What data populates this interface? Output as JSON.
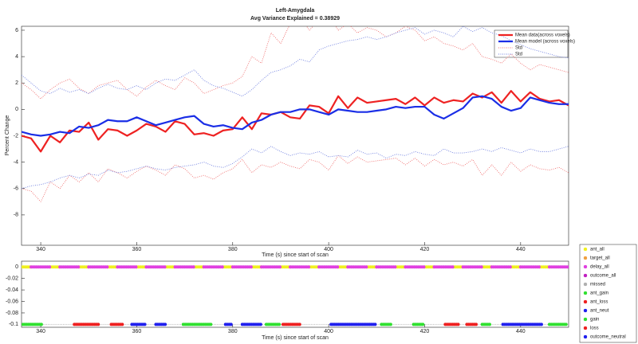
{
  "chart_data": [
    {
      "type": "line",
      "title": "Left-Amygdala",
      "subtitle": "Avg Variance Explained = 0.38929",
      "ylabel": "Percent Change",
      "xlabel": "Time (s) since start of scan",
      "xlim": [
        336,
        450
      ],
      "xticks": [
        340,
        360,
        380,
        400,
        420,
        440
      ],
      "ylim": [
        -10.3,
        6.3
      ],
      "yticks": [
        6,
        4,
        2,
        0,
        -2,
        -4,
        -6,
        -8
      ],
      "legend": "upper right",
      "x": [
        336,
        338,
        340,
        342,
        344,
        346,
        348,
        350,
        352,
        354,
        356,
        358,
        360,
        362,
        364,
        366,
        368,
        370,
        372,
        374,
        376,
        378,
        380,
        382,
        384,
        386,
        388,
        390,
        392,
        394,
        396,
        398,
        400,
        402,
        404,
        406,
        408,
        410,
        412,
        414,
        416,
        418,
        420,
        422,
        424,
        426,
        428,
        430,
        432,
        434,
        436,
        438,
        440,
        442,
        444,
        446,
        448,
        450
      ],
      "series": [
        {
          "name": "Mean data(across voxels)",
          "color": "#ee2222",
          "style": "solid",
          "values": [
            -2.0,
            -2.2,
            -3.2,
            -2.0,
            -2.5,
            -1.6,
            -1.7,
            -1.0,
            -2.3,
            -1.5,
            -1.6,
            -2.0,
            -1.6,
            -1.1,
            -1.3,
            -1.7,
            -0.9,
            -1.1,
            -1.9,
            -1.8,
            -2.0,
            -1.6,
            -1.5,
            -0.6,
            -1.5,
            -0.3,
            -0.4,
            -0.2,
            -0.6,
            -0.7,
            0.3,
            0.2,
            -0.3,
            1.0,
            0.1,
            0.9,
            0.5,
            0.6,
            0.7,
            0.8,
            0.4,
            0.9,
            0.3,
            0.9,
            0.5,
            0.7,
            0.6,
            1.2,
            0.9,
            1.3,
            0.5,
            1.4,
            0.6,
            1.3,
            0.8,
            0.6,
            0.7,
            0.3
          ]
        },
        {
          "name": "Mean model (across voxels)",
          "color": "#1a2ee6",
          "style": "solid",
          "values": [
            -1.7,
            -1.9,
            -2.0,
            -1.9,
            -1.7,
            -1.8,
            -1.3,
            -1.4,
            -1.2,
            -0.8,
            -0.9,
            -0.9,
            -0.6,
            -0.9,
            -1.2,
            -1.0,
            -0.8,
            -0.6,
            -0.5,
            -1.1,
            -1.3,
            -1.2,
            -1.4,
            -1.5,
            -1.0,
            -0.8,
            -0.4,
            -0.2,
            -0.2,
            0.0,
            0.0,
            -0.2,
            -0.4,
            0.0,
            -0.1,
            -0.2,
            -0.2,
            -0.1,
            0.0,
            0.2,
            0.1,
            0.2,
            0.2,
            -0.4,
            -0.7,
            -0.3,
            0.1,
            0.9,
            1.0,
            0.8,
            0.2,
            -0.1,
            0.1,
            0.9,
            0.7,
            0.5,
            0.4,
            0.4
          ]
        },
        {
          "name": "Std",
          "color": "#f07070",
          "style": "dotted",
          "upper": [
            2.0,
            1.5,
            0.8,
            1.5,
            2.0,
            2.3,
            1.6,
            1.2,
            1.8,
            2.0,
            2.2,
            1.5,
            1.0,
            1.7,
            2.2,
            1.8,
            1.5,
            2.4,
            2.0,
            1.2,
            1.5,
            1.8,
            2.0,
            2.5,
            4.0,
            3.5,
            5.8,
            5.0,
            6.5,
            7.0,
            6.0,
            6.8,
            7.2,
            6.0,
            6.5,
            5.8,
            6.2,
            6.0,
            5.5,
            5.8,
            6.3,
            6.0,
            5.2,
            5.5,
            5.0,
            4.8,
            4.5,
            5.0,
            4.0,
            3.8,
            3.5,
            4.2,
            3.5,
            3.0,
            3.4,
            3.2,
            3.0,
            2.8
          ],
          "lower": [
            -6.0,
            -6.2,
            -7.0,
            -5.5,
            -6.0,
            -5.0,
            -5.5,
            -4.8,
            -5.5,
            -4.5,
            -4.8,
            -5.2,
            -4.7,
            -4.3,
            -4.6,
            -5.0,
            -4.2,
            -4.5,
            -5.2,
            -5.0,
            -5.3,
            -4.8,
            -4.5,
            -3.8,
            -4.8,
            -4.2,
            -4.4,
            -4.0,
            -4.3,
            -4.5,
            -3.8,
            -4.0,
            -4.6,
            -3.5,
            -4.1,
            -3.6,
            -4.0,
            -3.9,
            -3.8,
            -3.7,
            -4.2,
            -3.7,
            -4.3,
            -3.8,
            -4.2,
            -4.0,
            -4.3,
            -3.8,
            -5.0,
            -4.2,
            -5.0,
            -4.0,
            -4.7,
            -4.2,
            -4.5,
            -4.6,
            -4.4,
            -4.8
          ]
        },
        {
          "name": "Std",
          "color": "#7080e0",
          "style": "dotted",
          "upper": [
            2.6,
            2.0,
            1.4,
            1.2,
            1.6,
            1.3,
            1.5,
            1.2,
            1.6,
            1.9,
            1.6,
            1.5,
            1.8,
            1.5,
            2.0,
            2.3,
            2.2,
            2.6,
            3.0,
            2.2,
            1.8,
            1.6,
            1.3,
            1.0,
            1.5,
            2.2,
            2.8,
            3.0,
            3.3,
            3.8,
            3.6,
            4.5,
            4.8,
            5.0,
            5.2,
            5.3,
            5.5,
            5.3,
            5.5,
            5.8,
            6.0,
            6.2,
            5.7,
            6.0,
            5.8,
            5.5,
            6.3,
            5.9,
            6.2,
            5.8,
            5.6,
            5.2,
            4.9,
            4.6,
            4.4,
            4.2,
            4.0,
            3.9
          ],
          "lower": [
            -6.0,
            -5.8,
            -5.7,
            -5.5,
            -5.2,
            -5.0,
            -5.2,
            -4.9,
            -5.0,
            -4.6,
            -4.8,
            -4.7,
            -4.5,
            -4.3,
            -4.5,
            -4.6,
            -4.4,
            -4.3,
            -4.2,
            -4.0,
            -4.3,
            -4.4,
            -4.1,
            -3.6,
            -3.0,
            -3.3,
            -2.8,
            -3.2,
            -3.5,
            -3.3,
            -3.4,
            -3.2,
            -3.6,
            -3.5,
            -3.6,
            -3.1,
            -3.4,
            -3.3,
            -3.7,
            -3.4,
            -3.5,
            -3.2,
            -3.4,
            -3.5,
            -3.0,
            -3.3,
            -3.3,
            -3.2,
            -3.0,
            -3.2,
            -2.9,
            -3.1,
            -3.3,
            -3.0,
            -3.2,
            -3.2,
            -3.0,
            -2.8
          ]
        }
      ]
    },
    {
      "type": "scatter",
      "xlabel": "Time (s) since start of scan",
      "xlim": [
        336,
        450
      ],
      "xticks": [
        340,
        360,
        380,
        400,
        420,
        440
      ],
      "ylim": [
        -0.105,
        0.01
      ],
      "yticks": [
        0,
        -0.02,
        -0.04,
        -0.06,
        -0.08,
        -0.1
      ],
      "legend": "outside right",
      "series": [
        {
          "name": "ant_all",
          "color": "#f0f020",
          "y": 0,
          "intervals": [
            [
              336,
              338
            ],
            [
              342,
              344
            ],
            [
              348,
              350
            ],
            [
              354,
              356
            ],
            [
              360,
              362
            ],
            [
              366,
              368
            ],
            [
              372,
              374
            ],
            [
              378,
              380
            ],
            [
              384,
              386
            ],
            [
              390,
              392
            ],
            [
              396,
              398
            ],
            [
              402,
              404
            ],
            [
              408,
              410
            ],
            [
              414,
              416
            ],
            [
              420,
              422
            ],
            [
              426,
              428
            ],
            [
              432,
              434
            ],
            [
              438,
              440
            ],
            [
              444,
              446
            ]
          ]
        },
        {
          "name": "target_all",
          "color": "#f0a040",
          "y": 0,
          "intervals": []
        },
        {
          "name": "delay_all",
          "color": "#e040e0",
          "y": 0,
          "intervals": [
            [
              338,
              342
            ],
            [
              344,
              348
            ],
            [
              350,
              354
            ],
            [
              356,
              360
            ],
            [
              362,
              366
            ],
            [
              368,
              372
            ],
            [
              374,
              378
            ],
            [
              380,
              384
            ],
            [
              386,
              390
            ],
            [
              392,
              396
            ],
            [
              398,
              402
            ],
            [
              404,
              408
            ],
            [
              410,
              414
            ],
            [
              416,
              420
            ],
            [
              422,
              426
            ],
            [
              428,
              432
            ],
            [
              434,
              438
            ],
            [
              440,
              444
            ],
            [
              446,
              450
            ]
          ]
        },
        {
          "name": "outcome_all",
          "color": "#c020c0",
          "y": 0,
          "intervals": []
        },
        {
          "name": "missed",
          "color": "#b0b0b0",
          "y": -0.1,
          "intervals": [
            [
              336,
              450
            ]
          ]
        },
        {
          "name": "ant_gain",
          "color": "#30e030",
          "y": -0.1,
          "intervals": [
            [
              336.3,
              340.5
            ],
            [
              369.7,
              375.5
            ],
            [
              411,
              413
            ],
            [
              432,
              433.8
            ]
          ]
        },
        {
          "name": "ant_loss",
          "color": "#ee2020",
          "y": -0.1,
          "intervals": [
            [
              347,
              352
            ],
            [
              390.5,
              394
            ],
            [
              424.3,
              427.2
            ]
          ]
        },
        {
          "name": "ant_neut",
          "color": "#2020ee",
          "y": -0.1,
          "intervals": [
            [
              359,
              362
            ],
            [
              382,
              386
            ],
            [
              400.5,
              409.7
            ]
          ]
        },
        {
          "name": "gain",
          "color": "#30e030",
          "y": -0.1,
          "intervals": [
            [
              387,
              389.7
            ],
            [
              417.7,
              419.7
            ],
            [
              446,
              449.7
            ]
          ]
        },
        {
          "name": "loss",
          "color": "#ee2020",
          "y": -0.1,
          "intervals": [
            [
              354.7,
              357
            ],
            [
              428.8,
              431
            ]
          ]
        },
        {
          "name": "outcome_neutral",
          "color": "#2020ee",
          "y": -0.1,
          "intervals": [
            [
              364,
              366
            ],
            [
              378.5,
              379.7
            ],
            [
              436.3,
              444.7
            ]
          ]
        }
      ]
    }
  ]
}
